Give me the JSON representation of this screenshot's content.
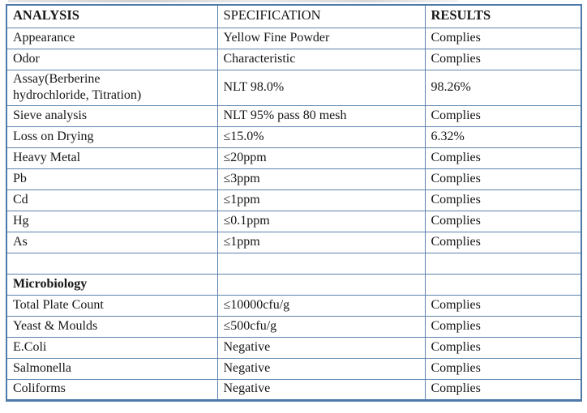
{
  "colors": {
    "table_border": "#5b82ad",
    "table_border_outer": "#4d79a8",
    "text": "#161616",
    "background": "#ffffff"
  },
  "table": {
    "headers": [
      {
        "label": "ANALYSIS"
      },
      {
        "label": "SPECIFICATION"
      },
      {
        "label": "RESULTS"
      }
    ],
    "rows": [
      {
        "analysis": "Appearance",
        "specification": "Yellow Fine Powder",
        "results": "Complies",
        "bold": false
      },
      {
        "analysis": "Odor",
        "specification": "Characteristic",
        "results": "Complies",
        "bold": false
      },
      {
        "analysis": "Assay(Berberine\nhydrochloride, Titration)",
        "specification": "NLT 98.0%",
        "results": "98.26%",
        "bold": false
      },
      {
        "analysis": "Sieve analysis",
        "specification": "NLT 95% pass 80 mesh",
        "results": "Complies",
        "bold": false
      },
      {
        "analysis": "Loss on Drying",
        "specification": "≤15.0%",
        "results": "6.32%",
        "bold": false
      },
      {
        "analysis": "Heavy Metal",
        "specification": "≤20ppm",
        "results": "Complies",
        "bold": false
      },
      {
        "analysis": "Pb",
        "specification": "≤3ppm",
        "results": "Complies",
        "bold": false
      },
      {
        "analysis": "Cd",
        "specification": "≤1ppm",
        "results": "Complies",
        "bold": false
      },
      {
        "analysis": "Hg",
        "specification": "≤0.1ppm",
        "results": "Complies",
        "bold": false
      },
      {
        "analysis": "As",
        "specification": "≤1ppm",
        "results": "Complies",
        "bold": false
      },
      {
        "analysis": "",
        "specification": "",
        "results": "",
        "bold": false
      },
      {
        "analysis": "Microbiology",
        "specification": "",
        "results": "",
        "bold": true
      },
      {
        "analysis": "Total Plate Count",
        "specification": "≤10000cfu/g",
        "results": "Complies",
        "bold": false
      },
      {
        "analysis": "Yeast & Moulds",
        "specification": "≤500cfu/g",
        "results": "Complies",
        "bold": false
      },
      {
        "analysis": "E.Coli",
        "specification": "Negative",
        "results": "Complies",
        "bold": false
      },
      {
        "analysis": "Salmonella",
        "specification": "Negative",
        "results": "Complies",
        "bold": false
      },
      {
        "analysis": "Coliforms",
        "specification": "Negative",
        "results": "Complies",
        "bold": false
      }
    ]
  }
}
